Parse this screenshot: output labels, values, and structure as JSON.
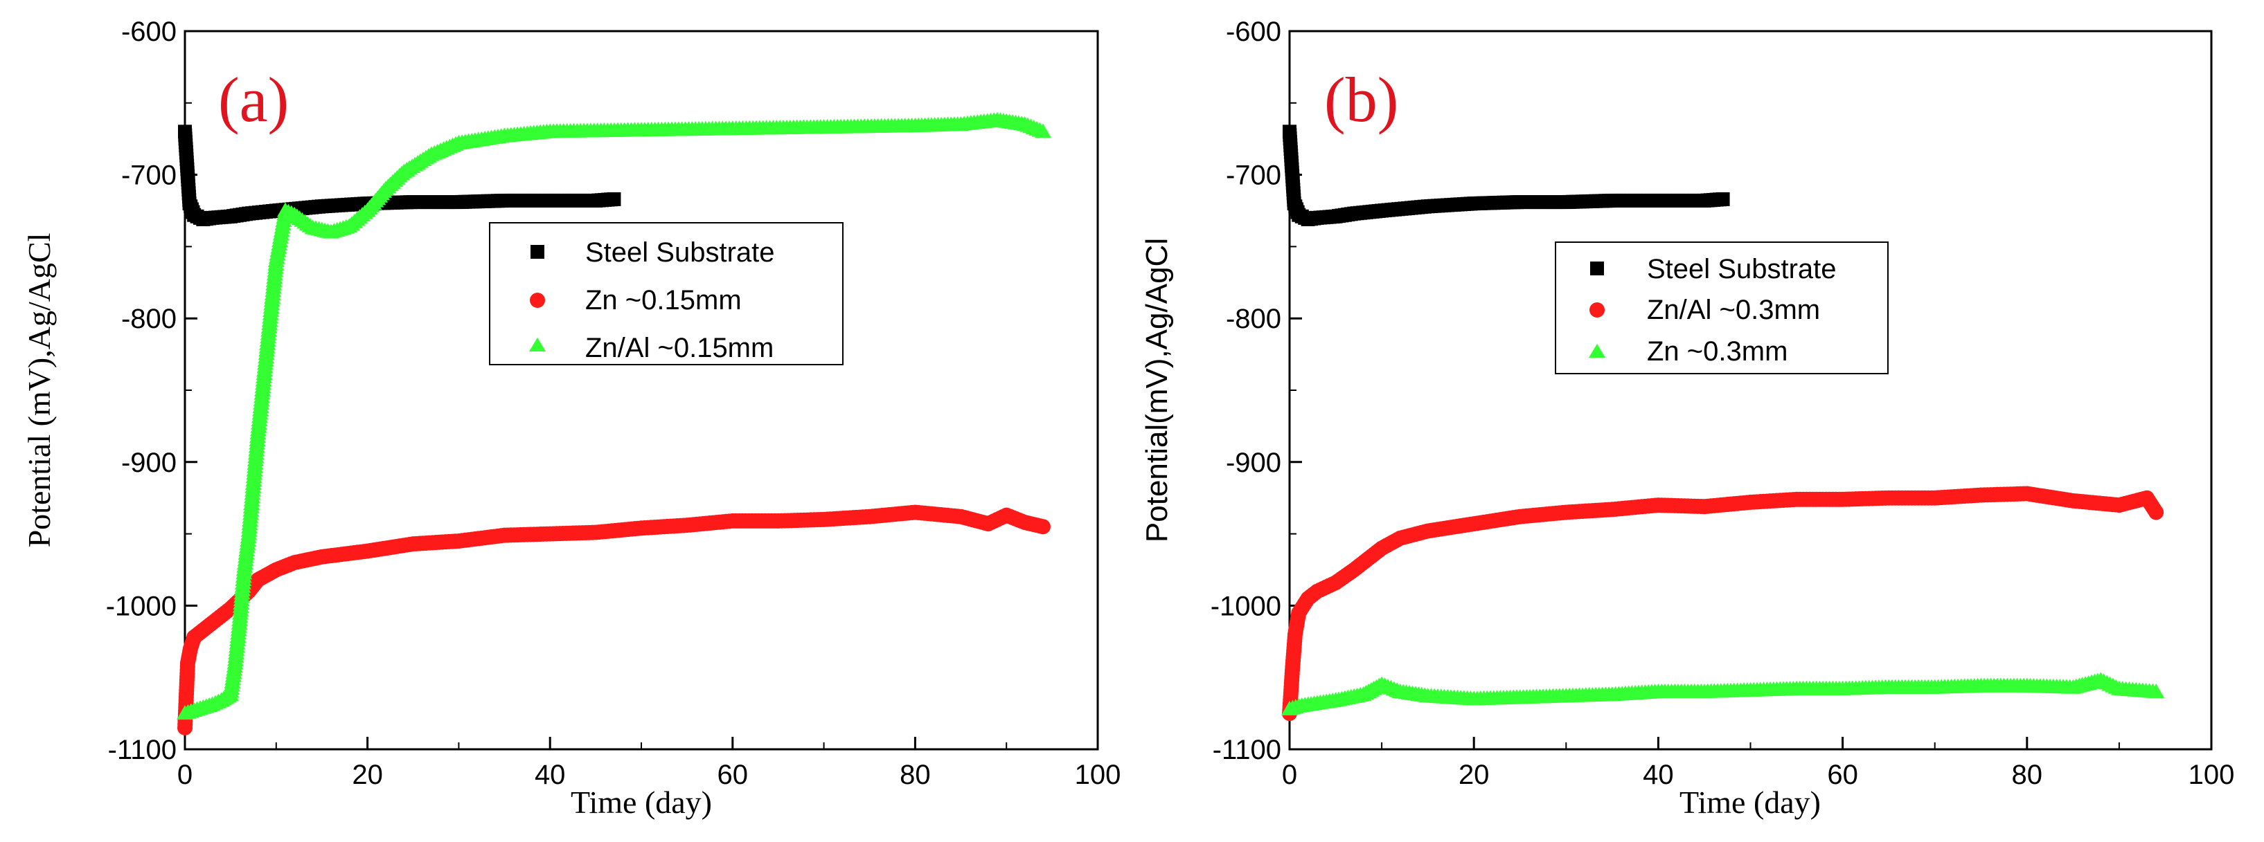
{
  "chart_data": [
    {
      "type": "scatter",
      "panel_label": "(a)",
      "xlabel": "Time (day)",
      "ylabel": "Potential (mV),Ag/AgCl",
      "xlim": [
        0,
        100
      ],
      "ylim": [
        -1100,
        -600
      ],
      "xticks": [
        "0",
        "20",
        "40",
        "60",
        "80",
        "100"
      ],
      "yticks": [
        "-600",
        "-700",
        "-800",
        "-900",
        "-1000",
        "-1100"
      ],
      "legend_position": "center",
      "series": [
        {
          "name": "Steel Substrate",
          "marker": "square",
          "color": "#000000",
          "x": [
            0,
            0.5,
            1,
            2,
            3,
            5,
            7,
            10,
            15,
            20,
            25,
            30,
            35,
            40,
            45,
            47
          ],
          "y": [
            -670,
            -720,
            -728,
            -731,
            -730,
            -729,
            -727,
            -725,
            -722,
            -720,
            -719,
            -719,
            -718,
            -718,
            -718,
            -717
          ]
        },
        {
          "name": "Zn ~0.15mm",
          "marker": "circle",
          "color": "#ff1a1a",
          "x": [
            0,
            0.3,
            0.6,
            1,
            2,
            3,
            5,
            7,
            8,
            10,
            12,
            15,
            20,
            25,
            30,
            35,
            40,
            45,
            50,
            55,
            60,
            65,
            70,
            75,
            80,
            85,
            88,
            90,
            92,
            94
          ],
          "y": [
            -1085,
            -1040,
            -1030,
            -1022,
            -1017,
            -1012,
            -1002,
            -990,
            -982,
            -975,
            -970,
            -966,
            -962,
            -957,
            -955,
            -951,
            -950,
            -949,
            -946,
            -944,
            -941,
            -941,
            -940,
            -938,
            -935,
            -938,
            -943,
            -937,
            -942,
            -945
          ]
        },
        {
          "name": "Zn/Al ~0.15mm",
          "marker": "triangle",
          "color": "#33ff33",
          "x": [
            0,
            1,
            2,
            3,
            4,
            5,
            5.5,
            6,
            6.5,
            7,
            8,
            9,
            10,
            11,
            12,
            14,
            16,
            18,
            20,
            22,
            24,
            27,
            30,
            35,
            40,
            50,
            60,
            70,
            80,
            85,
            89,
            92,
            94
          ],
          "y": [
            -1075,
            -1073,
            -1071,
            -1069,
            -1066,
            -1062,
            -1040,
            -1010,
            -975,
            -950,
            -880,
            -820,
            -760,
            -725,
            -728,
            -737,
            -740,
            -736,
            -725,
            -710,
            -698,
            -686,
            -678,
            -673,
            -670,
            -669,
            -668,
            -667,
            -666,
            -665,
            -662,
            -665,
            -670
          ]
        }
      ]
    },
    {
      "type": "scatter",
      "panel_label": "(b)",
      "xlabel": "Time (day)",
      "ylabel": "Potential(mV),Ag/AgCl",
      "xlim": [
        0,
        100
      ],
      "ylim": [
        -1100,
        -600
      ],
      "xticks": [
        "0",
        "20",
        "40",
        "60",
        "80",
        "100"
      ],
      "yticks": [
        "-600",
        "-700",
        "-800",
        "-900",
        "-1000",
        "-1100"
      ],
      "legend_position": "center",
      "series": [
        {
          "name": "Steel Substrate",
          "marker": "square",
          "color": "#000000",
          "x": [
            0,
            0.5,
            1,
            2,
            3,
            5,
            7,
            10,
            15,
            20,
            25,
            30,
            35,
            40,
            45,
            47
          ],
          "y": [
            -670,
            -720,
            -728,
            -731,
            -730,
            -729,
            -727,
            -725,
            -722,
            -720,
            -719,
            -719,
            -718,
            -718,
            -718,
            -717
          ]
        },
        {
          "name": "Zn/Al ~0.3mm",
          "marker": "circle",
          "color": "#ff1a1a",
          "x": [
            0,
            0.3,
            0.6,
            1,
            2,
            3,
            5,
            7,
            10,
            12,
            15,
            20,
            25,
            30,
            35,
            40,
            45,
            50,
            55,
            60,
            65,
            70,
            75,
            80,
            85,
            90,
            93,
            94
          ],
          "y": [
            -1075,
            -1045,
            -1020,
            -1005,
            -995,
            -990,
            -984,
            -975,
            -960,
            -953,
            -948,
            -943,
            -938,
            -935,
            -933,
            -930,
            -931,
            -928,
            -926,
            -926,
            -925,
            -925,
            -923,
            -922,
            -927,
            -930,
            -925,
            -935
          ]
        },
        {
          "name": "Zn     ~0.3mm",
          "marker": "triangle",
          "color": "#33ff33",
          "x": [
            0,
            1,
            2,
            5,
            8,
            10,
            12,
            15,
            20,
            25,
            30,
            35,
            40,
            45,
            50,
            55,
            60,
            65,
            70,
            75,
            80,
            85,
            88,
            90,
            94
          ],
          "y": [
            -1072,
            -1070,
            -1069,
            -1066,
            -1062,
            -1055,
            -1060,
            -1063,
            -1065,
            -1064,
            -1063,
            -1062,
            -1060,
            -1060,
            -1059,
            -1058,
            -1058,
            -1057,
            -1057,
            -1056,
            -1056,
            -1057,
            -1052,
            -1058,
            -1060
          ]
        }
      ]
    }
  ]
}
